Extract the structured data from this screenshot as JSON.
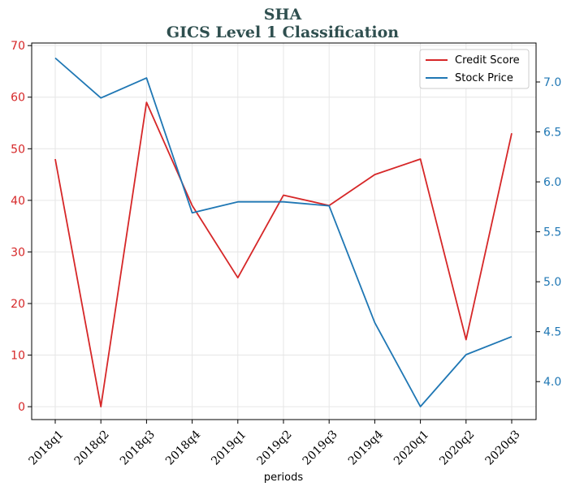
{
  "chart_data": {
    "type": "line",
    "title": "SHA",
    "subtitle": "GICS Level 1 Classification",
    "xlabel": "periods",
    "categories": [
      "2018q1",
      "2018q2",
      "2018q3",
      "2018q4",
      "2019q1",
      "2019q2",
      "2019q3",
      "2019q4",
      "2020q1",
      "2020q2",
      "2020q3"
    ],
    "series": [
      {
        "name": "Credit Score",
        "axis": "left",
        "color": "#d62728",
        "values": [
          48,
          0,
          59,
          39,
          25,
          41,
          39,
          45,
          48,
          13,
          53
        ]
      },
      {
        "name": "Stock Price",
        "axis": "right",
        "color": "#1f77b4",
        "values": [
          7.24,
          6.84,
          7.04,
          5.69,
          5.8,
          5.8,
          5.76,
          4.59,
          3.75,
          4.27,
          4.45
        ]
      }
    ],
    "y_left": {
      "range": [
        -2.5,
        70.5
      ],
      "ticks": [
        0,
        10,
        20,
        30,
        40,
        50,
        60,
        70
      ],
      "color": "#d62728"
    },
    "y_right": {
      "range": [
        3.62,
        7.39
      ],
      "ticks": [
        "4.0",
        "4.5",
        "5.0",
        "5.5",
        "6.0",
        "6.5",
        "7.0"
      ],
      "color": "#1f77b4"
    },
    "grid": true,
    "legend": "top-right"
  }
}
